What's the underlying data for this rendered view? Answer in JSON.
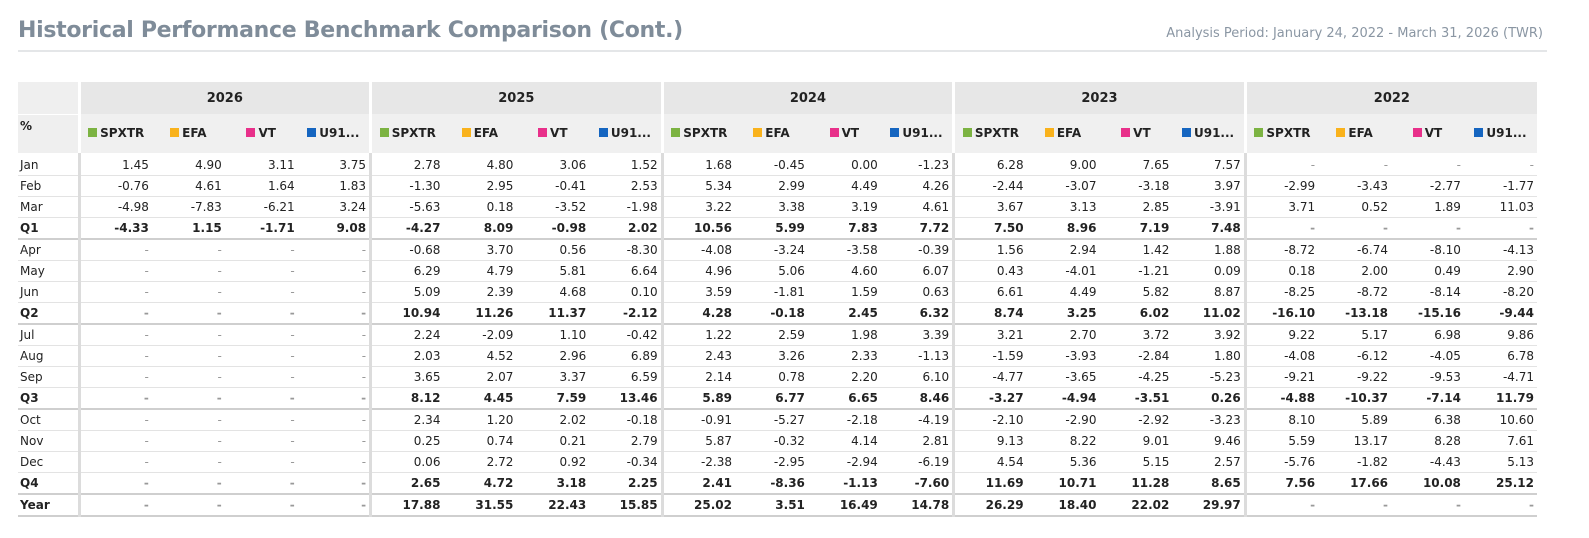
{
  "header": {
    "title": "Historical Performance Benchmark Comparison (Cont.)",
    "period": "Analysis Period: January 24, 2022 - March 31, 2026 (TWR)"
  },
  "table": {
    "corner_label": "%",
    "years": [
      "2026",
      "2025",
      "2024",
      "2023",
      "2022"
    ],
    "series": [
      {
        "label": "SPXTR",
        "color": "#7cb342"
      },
      {
        "label": "EFA",
        "color": "#f9b21c"
      },
      {
        "label": "VT",
        "color": "#e8308a"
      },
      {
        "label": "U91...",
        "color": "#1565c0"
      }
    ],
    "rows": [
      {
        "label": "Jan",
        "summary": false,
        "values": [
          "1.45",
          "4.90",
          "3.11",
          "3.75",
          "2.78",
          "4.80",
          "3.06",
          "1.52",
          "1.68",
          "-0.45",
          "0.00",
          "-1.23",
          "6.28",
          "9.00",
          "7.65",
          "7.57",
          "-",
          "-",
          "-",
          "-"
        ]
      },
      {
        "label": "Feb",
        "summary": false,
        "values": [
          "-0.76",
          "4.61",
          "1.64",
          "1.83",
          "-1.30",
          "2.95",
          "-0.41",
          "2.53",
          "5.34",
          "2.99",
          "4.49",
          "4.26",
          "-2.44",
          "-3.07",
          "-3.18",
          "3.97",
          "-2.99",
          "-3.43",
          "-2.77",
          "-1.77"
        ]
      },
      {
        "label": "Mar",
        "summary": false,
        "values": [
          "-4.98",
          "-7.83",
          "-6.21",
          "3.24",
          "-5.63",
          "0.18",
          "-3.52",
          "-1.98",
          "3.22",
          "3.38",
          "3.19",
          "4.61",
          "3.67",
          "3.13",
          "2.85",
          "-3.91",
          "3.71",
          "0.52",
          "1.89",
          "11.03"
        ]
      },
      {
        "label": "Q1",
        "summary": true,
        "values": [
          "-4.33",
          "1.15",
          "-1.71",
          "9.08",
          "-4.27",
          "8.09",
          "-0.98",
          "2.02",
          "10.56",
          "5.99",
          "7.83",
          "7.72",
          "7.50",
          "8.96",
          "7.19",
          "7.48",
          "-",
          "-",
          "-",
          "-"
        ]
      },
      {
        "label": "Apr",
        "summary": false,
        "values": [
          "-",
          "-",
          "-",
          "-",
          "-0.68",
          "3.70",
          "0.56",
          "-8.30",
          "-4.08",
          "-3.24",
          "-3.58",
          "-0.39",
          "1.56",
          "2.94",
          "1.42",
          "1.88",
          "-8.72",
          "-6.74",
          "-8.10",
          "-4.13"
        ]
      },
      {
        "label": "May",
        "summary": false,
        "values": [
          "-",
          "-",
          "-",
          "-",
          "6.29",
          "4.79",
          "5.81",
          "6.64",
          "4.96",
          "5.06",
          "4.60",
          "6.07",
          "0.43",
          "-4.01",
          "-1.21",
          "0.09",
          "0.18",
          "2.00",
          "0.49",
          "2.90"
        ]
      },
      {
        "label": "Jun",
        "summary": false,
        "values": [
          "-",
          "-",
          "-",
          "-",
          "5.09",
          "2.39",
          "4.68",
          "0.10",
          "3.59",
          "-1.81",
          "1.59",
          "0.63",
          "6.61",
          "4.49",
          "5.82",
          "8.87",
          "-8.25",
          "-8.72",
          "-8.14",
          "-8.20"
        ]
      },
      {
        "label": "Q2",
        "summary": true,
        "values": [
          "-",
          "-",
          "-",
          "-",
          "10.94",
          "11.26",
          "11.37",
          "-2.12",
          "4.28",
          "-0.18",
          "2.45",
          "6.32",
          "8.74",
          "3.25",
          "6.02",
          "11.02",
          "-16.10",
          "-13.18",
          "-15.16",
          "-9.44"
        ]
      },
      {
        "label": "Jul",
        "summary": false,
        "values": [
          "-",
          "-",
          "-",
          "-",
          "2.24",
          "-2.09",
          "1.10",
          "-0.42",
          "1.22",
          "2.59",
          "1.98",
          "3.39",
          "3.21",
          "2.70",
          "3.72",
          "3.92",
          "9.22",
          "5.17",
          "6.98",
          "9.86"
        ]
      },
      {
        "label": "Aug",
        "summary": false,
        "values": [
          "-",
          "-",
          "-",
          "-",
          "2.03",
          "4.52",
          "2.96",
          "6.89",
          "2.43",
          "3.26",
          "2.33",
          "-1.13",
          "-1.59",
          "-3.93",
          "-2.84",
          "1.80",
          "-4.08",
          "-6.12",
          "-4.05",
          "6.78"
        ]
      },
      {
        "label": "Sep",
        "summary": false,
        "values": [
          "-",
          "-",
          "-",
          "-",
          "3.65",
          "2.07",
          "3.37",
          "6.59",
          "2.14",
          "0.78",
          "2.20",
          "6.10",
          "-4.77",
          "-3.65",
          "-4.25",
          "-5.23",
          "-9.21",
          "-9.22",
          "-9.53",
          "-4.71"
        ]
      },
      {
        "label": "Q3",
        "summary": true,
        "values": [
          "-",
          "-",
          "-",
          "-",
          "8.12",
          "4.45",
          "7.59",
          "13.46",
          "5.89",
          "6.77",
          "6.65",
          "8.46",
          "-3.27",
          "-4.94",
          "-3.51",
          "0.26",
          "-4.88",
          "-10.37",
          "-7.14",
          "11.79"
        ]
      },
      {
        "label": "Oct",
        "summary": false,
        "values": [
          "-",
          "-",
          "-",
          "-",
          "2.34",
          "1.20",
          "2.02",
          "-0.18",
          "-0.91",
          "-5.27",
          "-2.18",
          "-4.19",
          "-2.10",
          "-2.90",
          "-2.92",
          "-3.23",
          "8.10",
          "5.89",
          "6.38",
          "10.60"
        ]
      },
      {
        "label": "Nov",
        "summary": false,
        "values": [
          "-",
          "-",
          "-",
          "-",
          "0.25",
          "0.74",
          "0.21",
          "2.79",
          "5.87",
          "-0.32",
          "4.14",
          "2.81",
          "9.13",
          "8.22",
          "9.01",
          "9.46",
          "5.59",
          "13.17",
          "8.28",
          "7.61"
        ]
      },
      {
        "label": "Dec",
        "summary": false,
        "values": [
          "-",
          "-",
          "-",
          "-",
          "0.06",
          "2.72",
          "0.92",
          "-0.34",
          "-2.38",
          "-2.95",
          "-2.94",
          "-6.19",
          "4.54",
          "5.36",
          "5.15",
          "2.57",
          "-5.76",
          "-1.82",
          "-4.43",
          "5.13"
        ]
      },
      {
        "label": "Q4",
        "summary": true,
        "values": [
          "-",
          "-",
          "-",
          "-",
          "2.65",
          "4.72",
          "3.18",
          "2.25",
          "2.41",
          "-8.36",
          "-1.13",
          "-7.60",
          "11.69",
          "10.71",
          "11.28",
          "8.65",
          "7.56",
          "17.66",
          "10.08",
          "25.12"
        ]
      },
      {
        "label": "Year",
        "summary": true,
        "values": [
          "-",
          "-",
          "-",
          "-",
          "17.88",
          "31.55",
          "22.43",
          "15.85",
          "25.02",
          "3.51",
          "16.49",
          "14.78",
          "26.29",
          "18.40",
          "22.02",
          "29.97",
          "-",
          "-",
          "-",
          "-"
        ]
      }
    ]
  }
}
